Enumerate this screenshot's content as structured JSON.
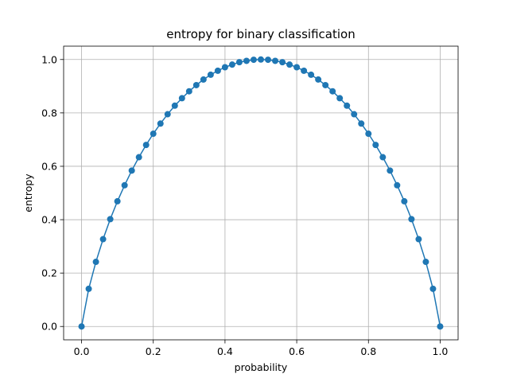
{
  "chart_data": {
    "type": "line",
    "title": "entropy for binary classification",
    "xlabel": "probability",
    "ylabel": "entropy",
    "xlim": [
      -0.05,
      1.05
    ],
    "ylim": [
      -0.05,
      1.05
    ],
    "xticks": [
      0.0,
      0.2,
      0.4,
      0.6,
      0.8,
      1.0
    ],
    "yticks": [
      0.0,
      0.2,
      0.4,
      0.6,
      0.8,
      1.0
    ],
    "xtick_labels": [
      "0.0",
      "0.2",
      "0.4",
      "0.6",
      "0.8",
      "1.0"
    ],
    "ytick_labels": [
      "0.0",
      "0.2",
      "0.4",
      "0.6",
      "0.8",
      "1.0"
    ],
    "grid": true,
    "series": [
      {
        "color": "#1f77b4",
        "marker": "circle",
        "x": [
          0.0,
          0.02,
          0.04,
          0.06,
          0.08,
          0.1,
          0.12,
          0.14,
          0.16,
          0.18,
          0.2,
          0.22,
          0.24,
          0.26,
          0.28,
          0.3,
          0.32,
          0.34,
          0.36,
          0.38,
          0.4,
          0.42,
          0.44,
          0.46,
          0.48,
          0.5,
          0.52,
          0.54,
          0.56,
          0.58,
          0.6,
          0.62,
          0.64,
          0.66,
          0.68,
          0.7,
          0.72,
          0.74,
          0.76,
          0.78,
          0.8,
          0.82,
          0.84,
          0.86,
          0.88,
          0.9,
          0.92,
          0.94,
          0.96,
          0.98,
          1.0
        ],
        "y": [
          0.0,
          0.141,
          0.242,
          0.327,
          0.402,
          0.469,
          0.529,
          0.584,
          0.634,
          0.68,
          0.722,
          0.76,
          0.795,
          0.827,
          0.855,
          0.881,
          0.904,
          0.925,
          0.943,
          0.958,
          0.971,
          0.981,
          0.99,
          0.995,
          0.999,
          1.0,
          0.999,
          0.995,
          0.99,
          0.981,
          0.971,
          0.958,
          0.943,
          0.925,
          0.904,
          0.881,
          0.855,
          0.827,
          0.795,
          0.76,
          0.722,
          0.68,
          0.634,
          0.584,
          0.529,
          0.469,
          0.402,
          0.327,
          0.242,
          0.141,
          0.0
        ]
      }
    ]
  }
}
